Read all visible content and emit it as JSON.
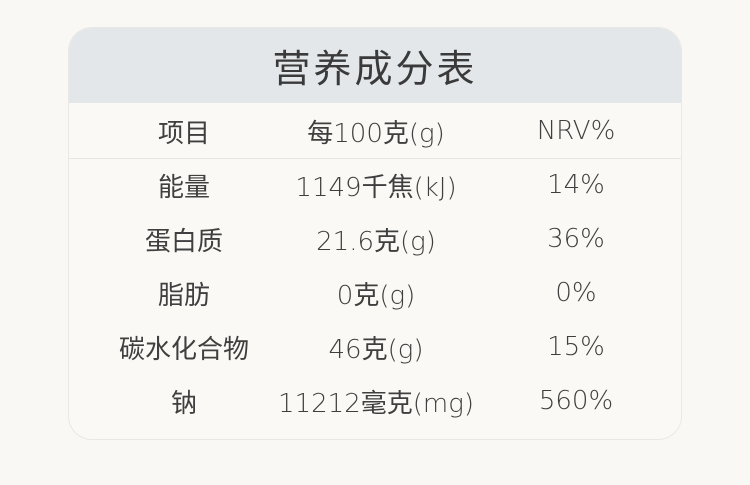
{
  "title": "营养成分表",
  "columns": [
    "项目",
    "每100克(g)",
    "NRV%"
  ],
  "rows": [
    [
      "能量",
      "1149千焦(kJ)",
      "14%"
    ],
    [
      "蛋白质",
      "21.6克(g)",
      "36%"
    ],
    [
      "脂肪",
      "0克(g)",
      "0%"
    ],
    [
      "碳水化合物",
      "46克(g)",
      "15%"
    ],
    [
      "钠",
      "11212毫克(mg)",
      "560%"
    ]
  ]
}
